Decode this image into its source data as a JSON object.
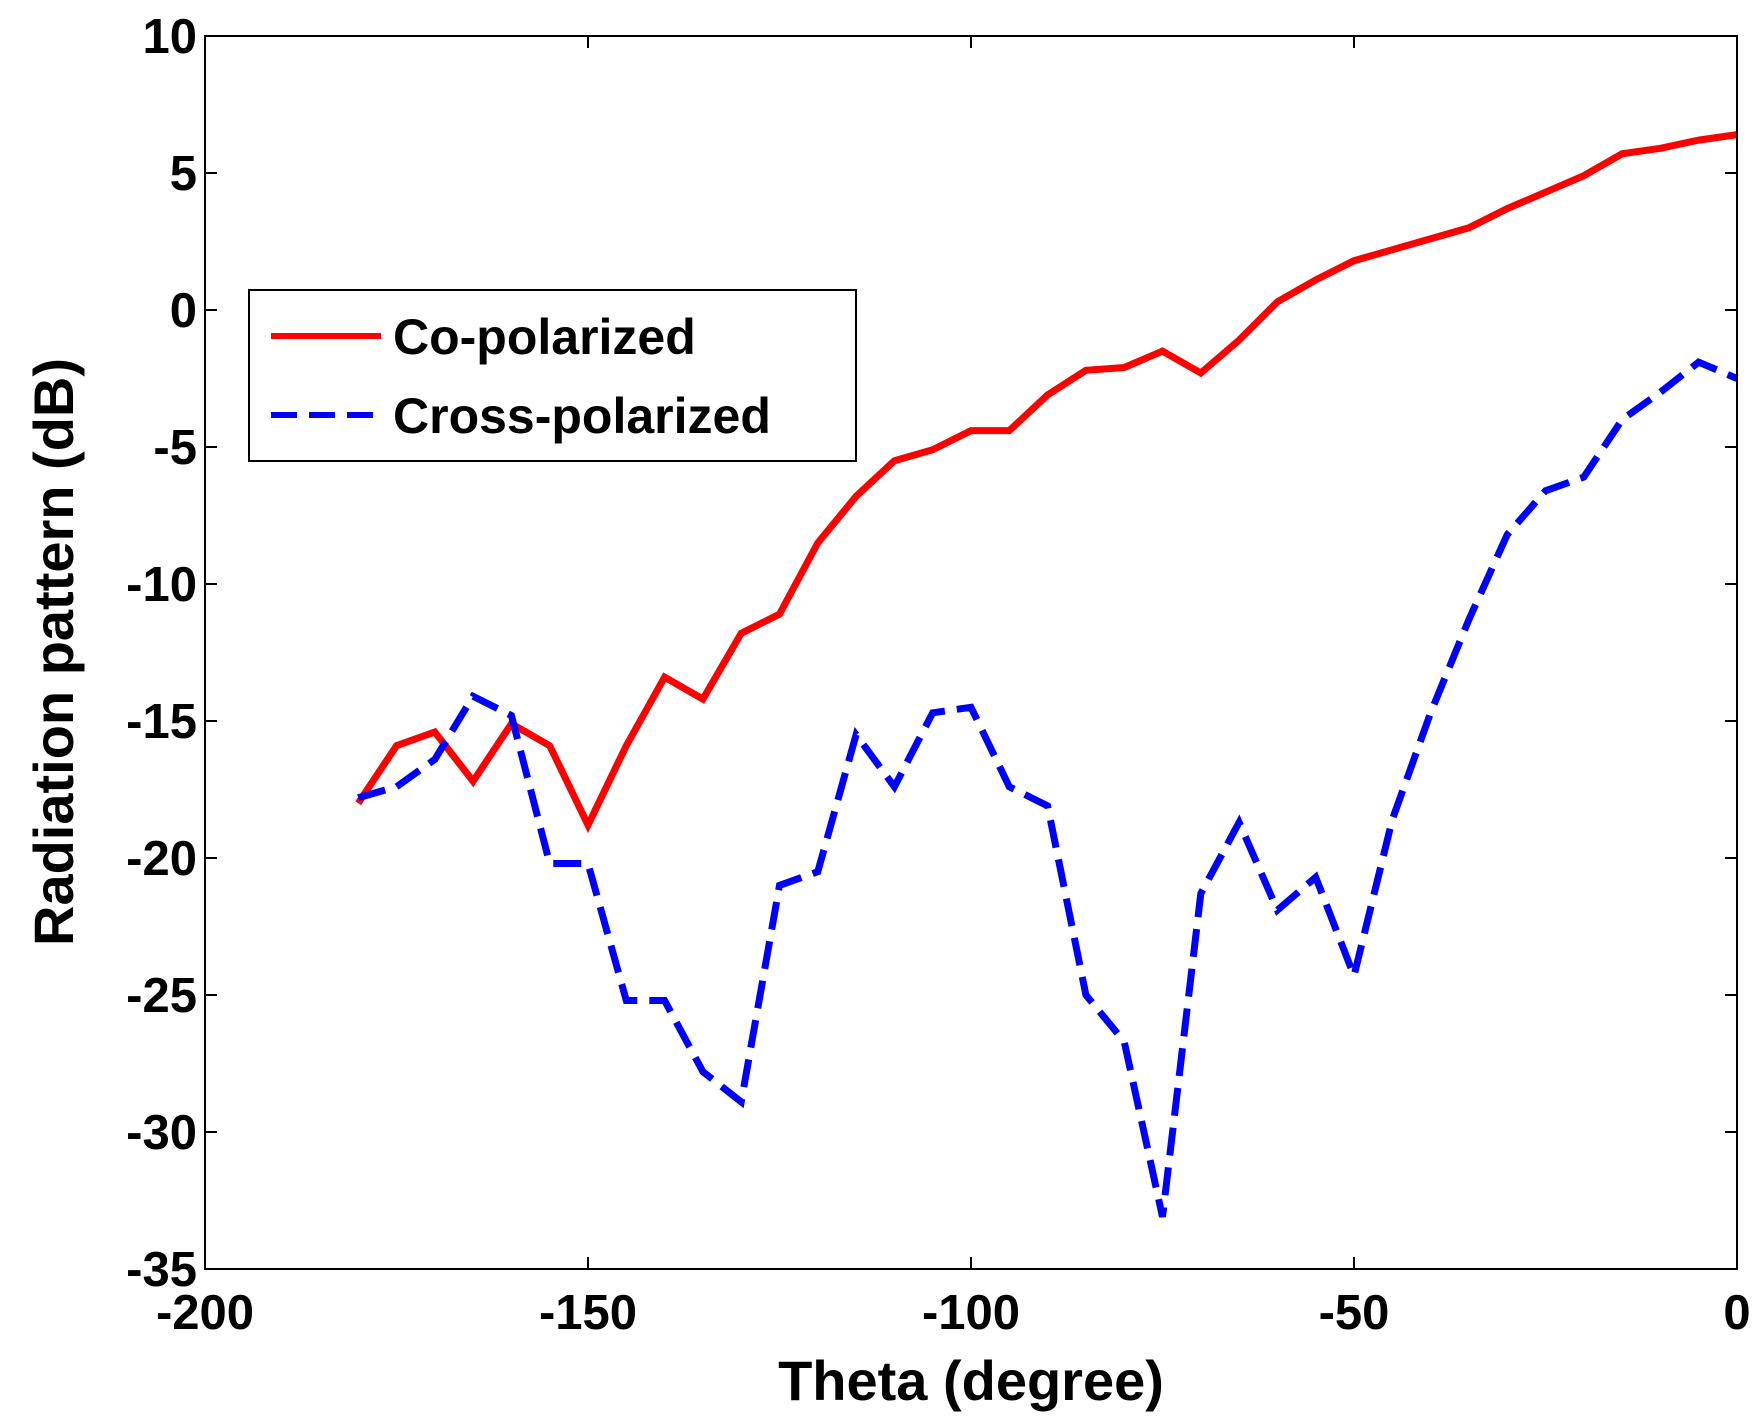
{
  "chart_data": {
    "type": "line",
    "xlabel": "Theta (degree)",
    "ylabel": "Radiation pattern (dB)",
    "xlim": [
      -200,
      0
    ],
    "ylim": [
      -35,
      10
    ],
    "xticks": [
      -200,
      -150,
      -100,
      -50,
      0
    ],
    "xtick_labels": [
      "-200",
      "-150",
      "-100",
      "-50",
      "0"
    ],
    "yticks": [
      10,
      5,
      0,
      -5,
      -10,
      -15,
      -20,
      -25,
      -30,
      -35
    ],
    "ytick_labels": [
      "10",
      "5",
      "0",
      "-5",
      "-10",
      "-15",
      "-20",
      "-25",
      "-30",
      "-35"
    ],
    "grid": false,
    "legend_position": "upper-left",
    "series": [
      {
        "name": "Co-polarized",
        "color": "#ff0000",
        "style": "solid",
        "x": [
          -180,
          -175,
          -170,
          -165,
          -160,
          -155,
          -150,
          -145,
          -140,
          -135,
          -130,
          -125,
          -120,
          -115,
          -110,
          -105,
          -100,
          -95,
          -90,
          -85,
          -80,
          -75,
          -70,
          -65,
          -60,
          -55,
          -50,
          -45,
          -40,
          -35,
          -30,
          -25,
          -20,
          -15,
          -10,
          -5,
          0
        ],
        "y": [
          -18.0,
          -15.9,
          -15.4,
          -17.2,
          -15.1,
          -15.9,
          -18.8,
          -15.9,
          -13.4,
          -14.2,
          -11.8,
          -11.1,
          -8.5,
          -6.8,
          -5.5,
          -5.1,
          -4.4,
          -4.4,
          -3.1,
          -2.2,
          -2.1,
          -1.5,
          -2.3,
          -1.1,
          0.3,
          1.1,
          1.8,
          2.2,
          2.6,
          3.0,
          3.7,
          4.3,
          4.9,
          5.7,
          5.9,
          6.2,
          6.4
        ]
      },
      {
        "name": "Cross-polarized",
        "color": "#0000ff",
        "style": "dashed",
        "x": [
          -180,
          -175,
          -170,
          -165,
          -160,
          -155,
          -150,
          -145,
          -140,
          -135,
          -130,
          -125,
          -120,
          -115,
          -110,
          -105,
          -100,
          -95,
          -90,
          -85,
          -80,
          -75,
          -70,
          -65,
          -60,
          -55,
          -50,
          -45,
          -40,
          -35,
          -30,
          -25,
          -20,
          -15,
          -10,
          -5,
          0
        ],
        "y": [
          -17.8,
          -17.4,
          -16.4,
          -14.1,
          -14.8,
          -20.2,
          -20.2,
          -25.2,
          -25.2,
          -27.8,
          -28.9,
          -21.0,
          -20.5,
          -15.5,
          -17.4,
          -14.7,
          -14.5,
          -17.4,
          -18.1,
          -25.0,
          -26.7,
          -33.1,
          -21.3,
          -18.7,
          -21.9,
          -20.7,
          -24.3,
          -18.6,
          -14.7,
          -11.3,
          -8.2,
          -6.6,
          -6.1,
          -4.0,
          -3.0,
          -1.9,
          -2.5
        ]
      }
    ]
  }
}
